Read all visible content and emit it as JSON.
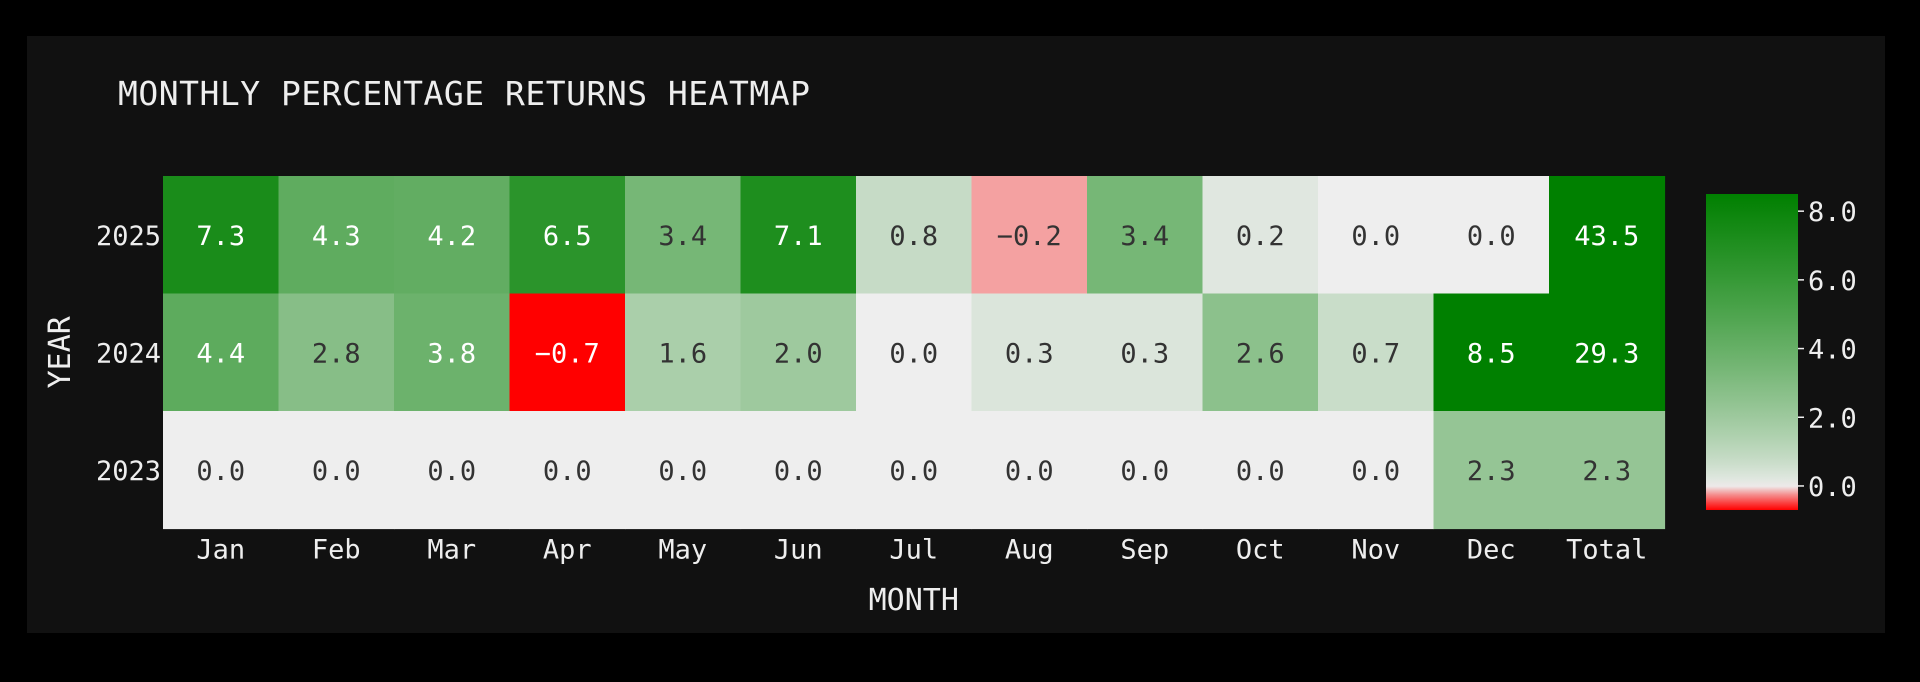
{
  "chart_data": {
    "type": "heatmap",
    "title": "MONTHLY PERCENTAGE RETURNS HEATMAP",
    "xlabel": "MONTH",
    "ylabel": "YEAR",
    "x_categories": [
      "Jan",
      "Feb",
      "Mar",
      "Apr",
      "May",
      "Jun",
      "Jul",
      "Aug",
      "Sep",
      "Oct",
      "Nov",
      "Dec",
      "Total"
    ],
    "y_categories": [
      "2025",
      "2024",
      "2023"
    ],
    "values": [
      [
        7.3,
        4.3,
        4.2,
        6.5,
        3.4,
        7.1,
        0.8,
        -0.2,
        3.4,
        0.2,
        0.0,
        0.0,
        43.5
      ],
      [
        4.4,
        2.8,
        3.8,
        -0.7,
        1.6,
        2.0,
        0.0,
        0.3,
        0.3,
        2.6,
        0.7,
        8.5,
        29.3
      ],
      [
        0.0,
        0.0,
        0.0,
        0.0,
        0.0,
        0.0,
        0.0,
        0.0,
        0.0,
        0.0,
        0.0,
        2.3,
        2.3
      ]
    ],
    "value_labels": [
      [
        "7.3",
        "4.3",
        "4.2",
        "6.5",
        "3.4",
        "7.1",
        "0.8",
        "−0.2",
        "3.4",
        "0.2",
        "0.0",
        "0.0",
        "43.5"
      ],
      [
        "4.4",
        "2.8",
        "3.8",
        "−0.7",
        "1.6",
        "2.0",
        "0.0",
        "0.3",
        "0.3",
        "2.6",
        "0.7",
        "8.5",
        "29.3"
      ],
      [
        "0.0",
        "0.0",
        "0.0",
        "0.0",
        "0.0",
        "0.0",
        "0.0",
        "0.0",
        "0.0",
        "0.0",
        "0.0",
        "2.3",
        "2.3"
      ]
    ],
    "colorbar": {
      "min": -0.7,
      "max": 8.5,
      "ticks": [
        8.0,
        6.0,
        4.0,
        2.0,
        0.0
      ],
      "tick_labels": [
        "8.0",
        "6.0",
        "4.0",
        "2.0",
        "0.0"
      ]
    },
    "colors": {
      "negative": "#ff0000",
      "zero": "#eeeeee",
      "positive": "#008000",
      "background": "#111111",
      "text_dark": "#333333",
      "text_light": "#ffffff"
    }
  }
}
